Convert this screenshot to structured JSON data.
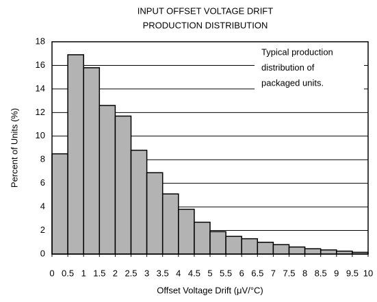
{
  "chart_data": {
    "type": "histogram",
    "title": [
      "INPUT OFFSET VOLTAGE DRIFT",
      "PRODUCTION DISTRIBUTION"
    ],
    "annotation": [
      "Typical production",
      "distribution of",
      "packaged units."
    ],
    "x_label": "Offset Voltage Drift (μV/°C)",
    "y_label": "Percent of Units (%)",
    "bins": [
      0,
      0.5,
      1,
      1.5,
      2,
      2.5,
      3,
      3.5,
      4,
      4.5,
      5,
      5.5,
      6,
      6.5,
      7,
      7.5,
      8,
      8.5,
      9,
      9.5,
      10
    ],
    "values": [
      8.5,
      16.9,
      15.8,
      12.6,
      11.7,
      8.8,
      6.9,
      5.1,
      3.8,
      2.7,
      1.9,
      1.5,
      1.3,
      1.0,
      0.8,
      0.6,
      0.45,
      0.35,
      0.25,
      0.15
    ],
    "color": "#b3b3b3",
    "xlim": [
      0,
      10
    ],
    "xticks": [
      0,
      0.5,
      1,
      1.5,
      2,
      2.5,
      3,
      3.5,
      4,
      4.5,
      5,
      5.5,
      6,
      6.5,
      7,
      7.5,
      8,
      8.5,
      9,
      9.5,
      10
    ],
    "ylim": [
      0,
      18
    ],
    "yticks": [
      0,
      2,
      4,
      6,
      8,
      10,
      12,
      14,
      16,
      18
    ],
    "grid": true
  }
}
